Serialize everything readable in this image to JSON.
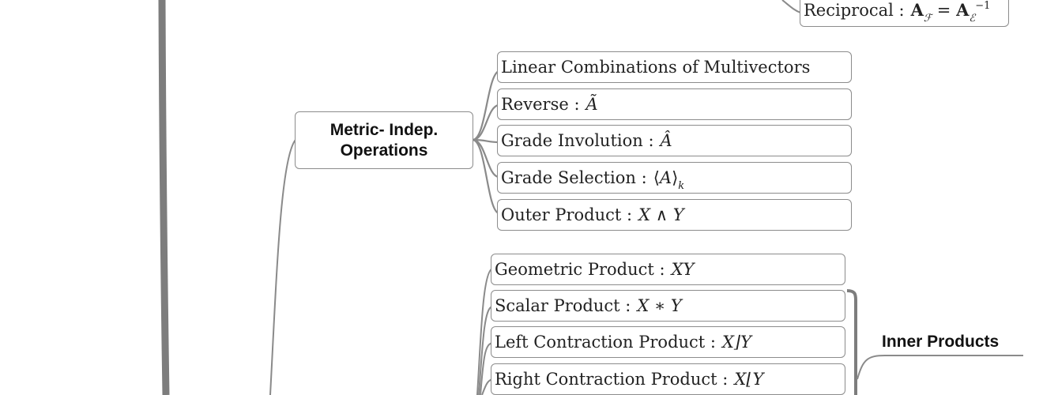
{
  "reciprocal": {
    "label": "Reciprocal :"
  },
  "metric_independent": {
    "title_line1": "Metric- Indep.",
    "title_line2": "Operations",
    "items": [
      {
        "label": "Linear Combinations of Multivectors"
      },
      {
        "label": "Reverse :"
      },
      {
        "label": "Grade Involution :"
      },
      {
        "label": "Grade Selection :"
      },
      {
        "label": "Outer Product :"
      }
    ]
  },
  "metric_dependent": {
    "items": [
      {
        "label": "Geometric Product :"
      },
      {
        "label": "Scalar Product :"
      },
      {
        "label": "Left Contraction Product :"
      },
      {
        "label": "Right Contraction Product :"
      }
    ]
  },
  "inner_products": {
    "title": "Inner Products"
  },
  "colors": {
    "connector": "#8a8a8a",
    "trunk": "#7d7d7d",
    "box_border": "#8c8c8c"
  }
}
